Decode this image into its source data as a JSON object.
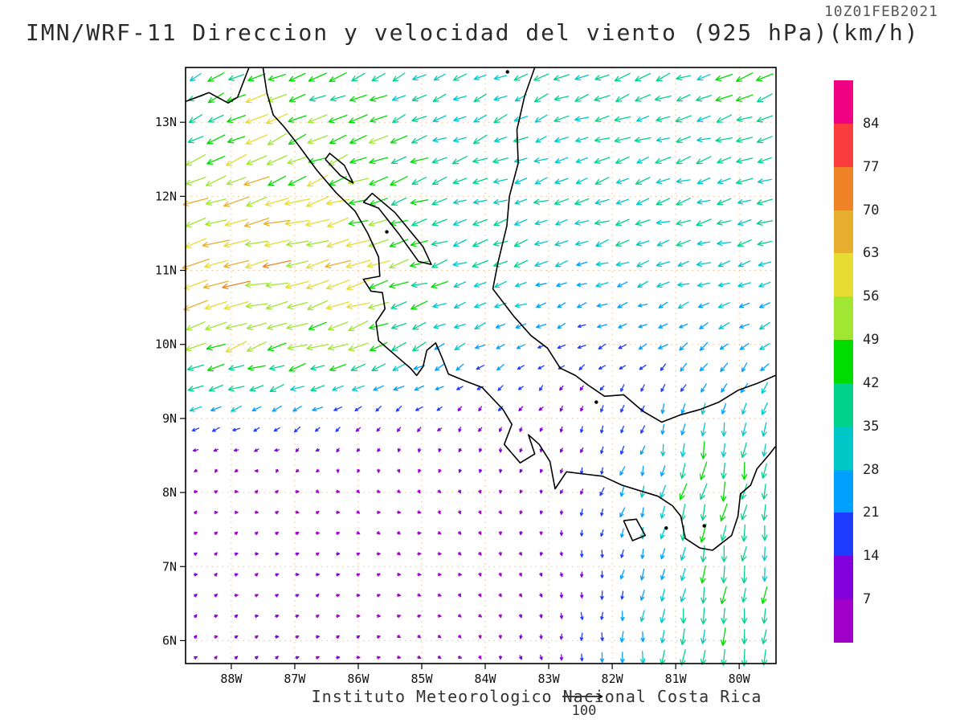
{
  "header": {
    "title": "IMN/WRF-11 Direccion y velocidad del viento (925 hPa)(km/h)",
    "datestamp": "10Z01FEB2021"
  },
  "footer": {
    "caption": "Instituto Meteorologico Nacional Costa Rica",
    "reference_vector_label": "100"
  },
  "chart_data": {
    "type": "vector-field",
    "title": "IMN/WRF-11 Direccion y velocidad del viento (925 hPa)(km/h)",
    "valid_time": "10Z01FEB2021",
    "level": "925 hPa",
    "units": "km/h",
    "extent": {
      "lon_min": -88.72,
      "lon_max": -79.42,
      "lat_min": 5.69,
      "lat_max": 13.74
    },
    "lon_ticks": [
      {
        "label": "88W",
        "value": -88
      },
      {
        "label": "87W",
        "value": -87
      },
      {
        "label": "86W",
        "value": -86
      },
      {
        "label": "85W",
        "value": -85
      },
      {
        "label": "84W",
        "value": -84
      },
      {
        "label": "83W",
        "value": -83
      },
      {
        "label": "82W",
        "value": -82
      },
      {
        "label": "81W",
        "value": -81
      },
      {
        "label": "80W",
        "value": -80
      }
    ],
    "lat_ticks": [
      {
        "label": "13N",
        "value": 13
      },
      {
        "label": "12N",
        "value": 12
      },
      {
        "label": "11N",
        "value": 11
      },
      {
        "label": "10N",
        "value": 10
      },
      {
        "label": "9N",
        "value": 9
      },
      {
        "label": "8N",
        "value": 8
      },
      {
        "label": "7N",
        "value": 7
      },
      {
        "label": "6N",
        "value": 6
      }
    ],
    "gridlines": {
      "style": "dotted",
      "color": "#f0b070",
      "interval_deg": 1
    },
    "colorbar": {
      "levels": [
        7,
        14,
        21,
        28,
        35,
        42,
        49,
        56,
        63,
        70,
        77,
        84
      ],
      "colors_low_to_high": [
        "#A000C8",
        "#8200DC",
        "#1E3CFF",
        "#00A0FF",
        "#00C8C8",
        "#00D28C",
        "#00DC00",
        "#A0E632",
        "#E6DC32",
        "#E6AF2D",
        "#F08228",
        "#FA3C3C",
        "#F00082"
      ],
      "labels_top_to_bottom": [
        "84",
        "77",
        "70",
        "63",
        "56",
        "49",
        "42",
        "35",
        "28",
        "21",
        "14",
        "7"
      ]
    },
    "reference_vector": {
      "speed": 100,
      "label": "100"
    },
    "wind_grid": {
      "lons": [
        -88.7,
        -87.5,
        -86,
        -84.5,
        -83,
        -81.5,
        -80.5,
        -79.4
      ],
      "lats": [
        13.7,
        13,
        12,
        11,
        10,
        9,
        8,
        7,
        5.7
      ],
      "u": [
        [
          -32,
          -42,
          -35,
          -30,
          -32,
          -34,
          -36,
          -38
        ],
        [
          -36,
          -48,
          -40,
          -32,
          -32,
          -34,
          -36,
          -38
        ],
        [
          -50,
          -55,
          -45,
          -34,
          -30,
          -32,
          -34,
          -36
        ],
        [
          -64,
          -63,
          -58,
          -36,
          -28,
          -28,
          -30,
          -32
        ],
        [
          -48,
          -50,
          -44,
          -26,
          -16,
          -18,
          -20,
          -22
        ],
        [
          -22,
          -20,
          -14,
          -8,
          -5,
          -4,
          -5,
          -5
        ],
        [
          4,
          5,
          5,
          3,
          -2,
          -8,
          -10,
          -6
        ],
        [
          6,
          7,
          6,
          4,
          1,
          -4,
          -6,
          -5
        ],
        [
          6,
          7,
          6,
          4,
          0,
          -3,
          -5,
          -4
        ]
      ],
      "v": [
        [
          -14,
          -20,
          -16,
          -14,
          -14,
          -14,
          -14,
          -14
        ],
        [
          -16,
          -22,
          -18,
          -14,
          -12,
          -12,
          -12,
          -12
        ],
        [
          -20,
          -18,
          -16,
          -12,
          -10,
          -10,
          -10,
          -10
        ],
        [
          -16,
          -14,
          -14,
          -12,
          -10,
          -8,
          -8,
          -8
        ],
        [
          -16,
          -16,
          -16,
          -12,
          -8,
          -10,
          -14,
          -16
        ],
        [
          -10,
          -9,
          -10,
          -10,
          -10,
          -18,
          -32,
          -30
        ],
        [
          2,
          2,
          -2,
          -5,
          -8,
          -26,
          -44,
          -34
        ],
        [
          3,
          3,
          2,
          -2,
          -8,
          -24,
          -38,
          -36
        ],
        [
          4,
          3,
          2,
          -3,
          -12,
          -28,
          -40,
          -37
        ]
      ]
    },
    "coastlines": {
      "pacific_northwest": [
        [
          -88.72,
          13.28
        ],
        [
          -88.35,
          13.4
        ],
        [
          -88.05,
          13.26
        ],
        [
          -87.9,
          13.34
        ],
        [
          -87.82,
          13.52
        ],
        [
          -87.72,
          13.74
        ]
      ],
      "pacific_main": [
        [
          -87.5,
          13.74
        ],
        [
          -87.44,
          13.4
        ],
        [
          -87.34,
          13.1
        ],
        [
          -87.18,
          12.95
        ],
        [
          -86.95,
          12.7
        ],
        [
          -86.65,
          12.35
        ],
        [
          -86.35,
          12.05
        ],
        [
          -86.05,
          11.8
        ],
        [
          -85.85,
          11.5
        ],
        [
          -85.68,
          11.18
        ],
        [
          -85.66,
          10.92
        ],
        [
          -85.92,
          10.88
        ],
        [
          -85.8,
          10.72
        ],
        [
          -85.62,
          10.7
        ],
        [
          -85.58,
          10.48
        ],
        [
          -85.72,
          10.3
        ],
        [
          -85.68,
          10.05
        ],
        [
          -85.45,
          9.88
        ],
        [
          -85.18,
          9.68
        ],
        [
          -85.08,
          9.58
        ],
        [
          -84.98,
          9.7
        ],
        [
          -84.92,
          9.92
        ],
        [
          -84.78,
          10.02
        ],
        [
          -84.68,
          9.82
        ],
        [
          -84.58,
          9.6
        ],
        [
          -84.3,
          9.5
        ],
        [
          -84.05,
          9.42
        ],
        [
          -83.72,
          9.12
        ],
        [
          -83.58,
          8.92
        ],
        [
          -83.7,
          8.65
        ],
        [
          -83.45,
          8.4
        ],
        [
          -83.22,
          8.52
        ],
        [
          -83.32,
          8.78
        ],
        [
          -83.15,
          8.65
        ],
        [
          -82.98,
          8.42
        ],
        [
          -82.9,
          8.05
        ],
        [
          -82.72,
          8.28
        ],
        [
          -82.45,
          8.25
        ],
        [
          -82.15,
          8.22
        ],
        [
          -81.85,
          8.1
        ],
        [
          -81.55,
          8.02
        ],
        [
          -81.28,
          7.95
        ],
        [
          -81.05,
          7.82
        ],
        [
          -80.92,
          7.68
        ],
        [
          -80.85,
          7.38
        ],
        [
          -80.62,
          7.25
        ],
        [
          -80.42,
          7.22
        ],
        [
          -80.12,
          7.42
        ],
        [
          -80.02,
          7.68
        ],
        [
          -79.98,
          7.98
        ],
        [
          -79.82,
          8.1
        ],
        [
          -79.72,
          8.32
        ],
        [
          -79.52,
          8.52
        ],
        [
          -79.43,
          8.62
        ]
      ],
      "caribbean": [
        [
          -83.22,
          13.74
        ],
        [
          -83.38,
          13.35
        ],
        [
          -83.5,
          12.9
        ],
        [
          -83.48,
          12.45
        ],
        [
          -83.62,
          12.0
        ],
        [
          -83.66,
          11.6
        ],
        [
          -83.8,
          11.1
        ],
        [
          -83.88,
          10.75
        ],
        [
          -83.55,
          10.38
        ],
        [
          -83.28,
          10.12
        ],
        [
          -83.02,
          9.95
        ],
        [
          -82.82,
          9.68
        ],
        [
          -82.58,
          9.58
        ],
        [
          -82.38,
          9.45
        ],
        [
          -82.12,
          9.3
        ],
        [
          -81.82,
          9.32
        ],
        [
          -81.52,
          9.1
        ],
        [
          -81.22,
          8.95
        ],
        [
          -80.92,
          9.05
        ],
        [
          -80.62,
          9.12
        ],
        [
          -80.32,
          9.22
        ],
        [
          -80.02,
          9.38
        ],
        [
          -79.7,
          9.48
        ],
        [
          -79.43,
          9.58
        ]
      ],
      "lake_nicaragua": [
        [
          -85.92,
          11.92
        ],
        [
          -85.68,
          11.84
        ],
        [
          -85.35,
          11.48
        ],
        [
          -85.05,
          11.12
        ],
        [
          -84.85,
          11.08
        ],
        [
          -84.98,
          11.32
        ],
        [
          -85.42,
          11.78
        ],
        [
          -85.78,
          12.04
        ],
        [
          -85.92,
          11.92
        ]
      ],
      "lake_managua": [
        [
          -86.52,
          12.5
        ],
        [
          -86.28,
          12.28
        ],
        [
          -86.08,
          12.18
        ],
        [
          -86.22,
          12.42
        ],
        [
          -86.45,
          12.58
        ],
        [
          -86.52,
          12.5
        ]
      ],
      "coiba_island": [
        [
          -81.82,
          7.62
        ],
        [
          -81.68,
          7.35
        ],
        [
          -81.48,
          7.42
        ],
        [
          -81.62,
          7.64
        ],
        [
          -81.82,
          7.62
        ]
      ],
      "small_islands": [
        [
          -85.55,
          11.52
        ],
        [
          -83.65,
          13.68
        ],
        [
          -81.15,
          7.52
        ],
        [
          -80.55,
          7.55
        ],
        [
          -82.25,
          9.22
        ]
      ]
    }
  }
}
